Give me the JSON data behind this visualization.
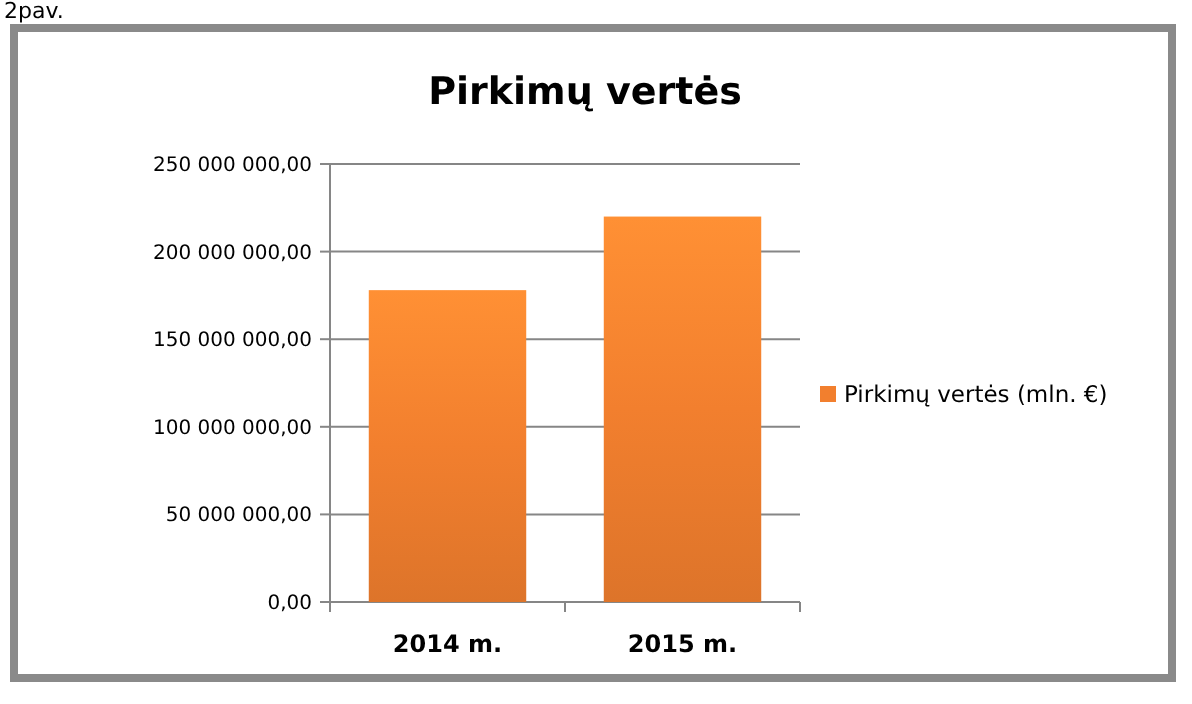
{
  "chart_data": {
    "type": "bar",
    "title": "Pirkimų vertės",
    "annotations": [
      "2pav."
    ],
    "categories": [
      "2014 m.",
      "2015 m."
    ],
    "series": [
      {
        "name": "Pirkimų vertės (mln. €)",
        "color": "#f27f2e",
        "values": [
          178000000,
          220000000
        ]
      }
    ],
    "ylim": [
      0,
      250000000
    ],
    "yticks": [
      {
        "value": 0,
        "label": "0,00"
      },
      {
        "value": 50000000,
        "label": "50 000 000,00"
      },
      {
        "value": 100000000,
        "label": "100 000 000,00"
      },
      {
        "value": 150000000,
        "label": "150 000 000,00"
      },
      {
        "value": 200000000,
        "label": "200 000 000,00"
      },
      {
        "value": 250000000,
        "label": "250 000 000,00"
      }
    ],
    "grid": "y",
    "legend": "right"
  }
}
